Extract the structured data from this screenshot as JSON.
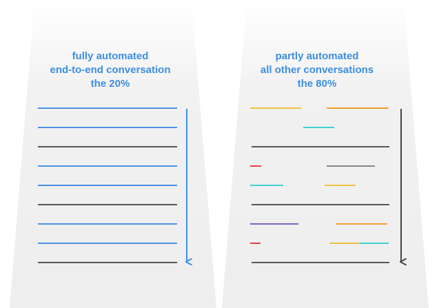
{
  "left": {
    "heading": [
      "fully automated",
      "end-to-end conversation",
      "the 20%"
    ]
  },
  "right": {
    "heading": [
      "partly automated",
      "all other conversations",
      "the 80%"
    ]
  },
  "colors": {
    "heading": "#3d8fe0",
    "bot_line": "#4a90e2",
    "human_line": "#555555",
    "gray_line": "#888888",
    "yellow": "#f0c040",
    "orange": "#f0a030",
    "cyan": "#40d0d0",
    "red": "#e04050",
    "purple": "#8060c0",
    "blue_arrow": "#3d8fe0",
    "dark_arrow": "#444444"
  }
}
